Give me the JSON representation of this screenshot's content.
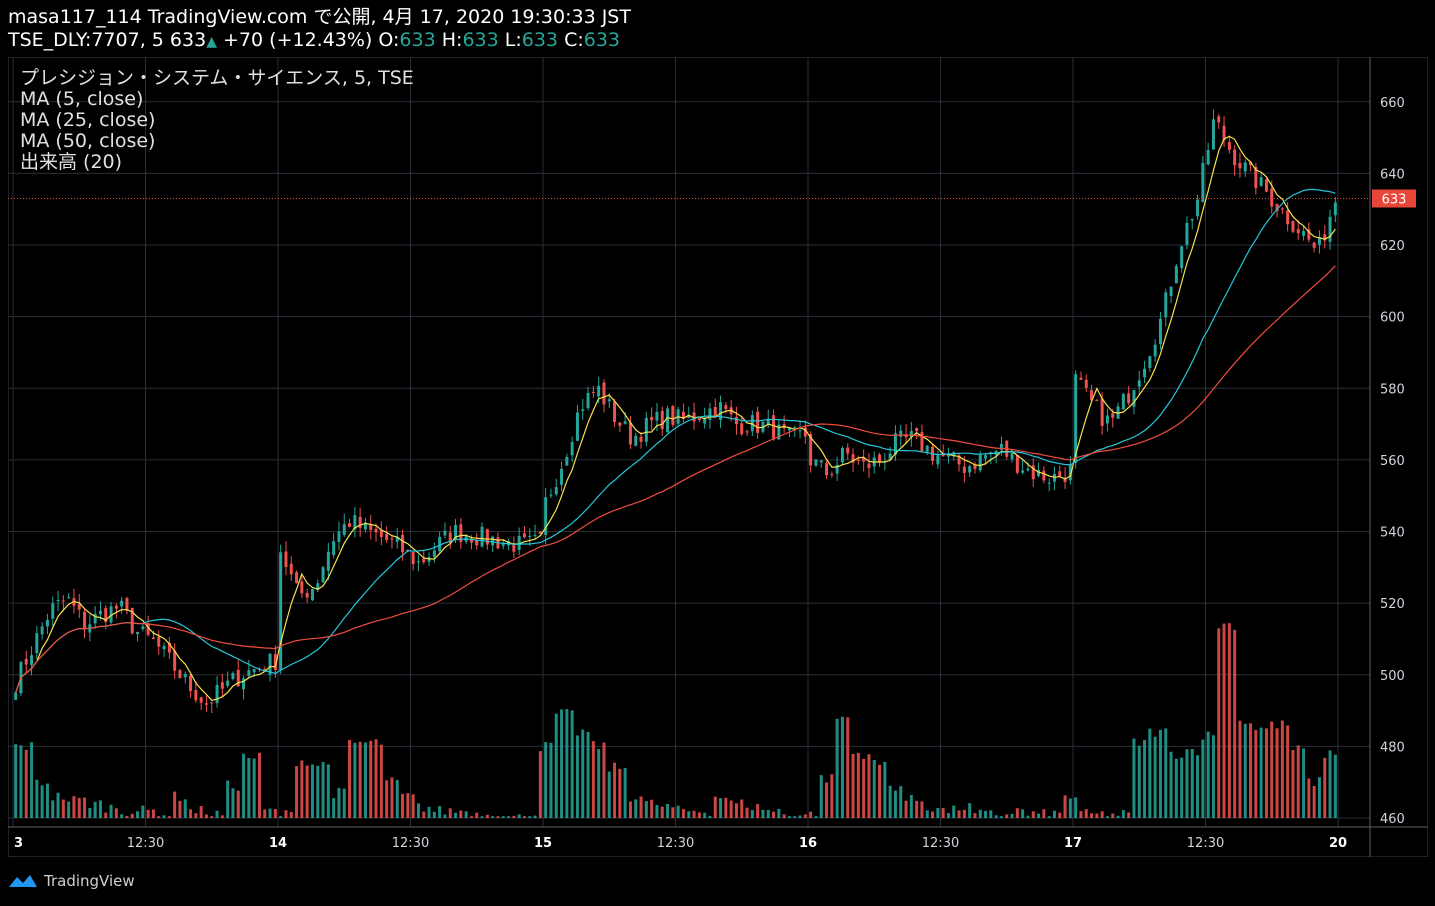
{
  "header": {
    "line1": "masa117_114 TradingView.com で公開, 4月 17, 2020 19:30:33 JST",
    "symbol": "TSE_DLY:7707, 5 633",
    "change": "+70 (+12.43%)",
    "o_label": "O:",
    "o_val": "633",
    "h_label": "H:",
    "h_val": "633",
    "l_label": "L:",
    "l_val": "633",
    "c_label": "C:",
    "c_val": "633"
  },
  "legend": {
    "title": "プレシジョン・システム・サイエンス, 5, TSE",
    "ma5": "MA (5, close)",
    "ma25": "MA (25, close)",
    "ma50": "MA (50, close)",
    "volume": "出来高 (20)"
  },
  "footer": {
    "brand": "TradingView"
  },
  "colors": {
    "up": "#26a69a",
    "down": "#ef5350",
    "ma5": "#f5e34b",
    "ma25": "#26c6da",
    "ma50": "#f04c3e",
    "price_tag": "#e84638",
    "grid": "#2a2e39"
  },
  "chart_data": {
    "type": "candlestick",
    "ylim": [
      460,
      670
    ],
    "y_ticks": [
      460,
      480,
      500,
      520,
      540,
      560,
      580,
      600,
      620,
      640,
      660
    ],
    "x_labels": [
      "3",
      "12:30",
      "14",
      "12:30",
      "15",
      "12:30",
      "16",
      "12:30",
      "17",
      "12:30",
      "20"
    ],
    "last_price": 633,
    "last_price_label": "633",
    "days": [
      {
        "label": "3",
        "closes": [
          498,
          508,
          518,
          521,
          514,
          517,
          519,
          512,
          509,
          503,
          497,
          492,
          496,
          500,
          502,
          504
        ]
      },
      {
        "label": "14",
        "closes": [
          535,
          522,
          525,
          538,
          543,
          540,
          538,
          535,
          531,
          536,
          540,
          539,
          538,
          537,
          536,
          537
        ]
      },
      {
        "label": "15",
        "closes": [
          548,
          560,
          575,
          580,
          572,
          566,
          570,
          572,
          571,
          573,
          575,
          570,
          570,
          569,
          566,
          567
        ]
      },
      {
        "label": "16",
        "closes": [
          560,
          556,
          562,
          558,
          560,
          565,
          566,
          562,
          560,
          558,
          561,
          563,
          559,
          556,
          555,
          557
        ]
      },
      {
        "label": "17",
        "closes": [
          582,
          575,
          570,
          578,
          588,
          600,
          620,
          632,
          655,
          646,
          640,
          635,
          629,
          624,
          618,
          633
        ]
      }
    ],
    "volume_series": {
      "name": "出来高 (20)",
      "values": [
        480,
        470,
        466,
        465,
        464,
        463,
        462,
        462,
        461,
        466,
        462,
        461,
        469,
        477,
        462,
        461,
        476,
        475,
        467,
        481,
        481,
        470,
        466,
        463,
        462,
        462,
        461,
        461,
        460,
        461,
        480,
        489,
        484,
        480,
        474,
        466,
        464,
        463,
        462,
        462,
        466,
        464,
        463,
        462,
        461,
        461,
        471,
        488,
        478,
        475,
        469,
        465,
        463,
        462,
        463,
        461,
        461,
        462,
        461,
        461,
        466,
        461,
        461,
        461,
        481,
        484,
        478,
        479,
        483,
        514,
        487,
        485,
        486,
        479,
        470,
        478
      ]
    }
  }
}
